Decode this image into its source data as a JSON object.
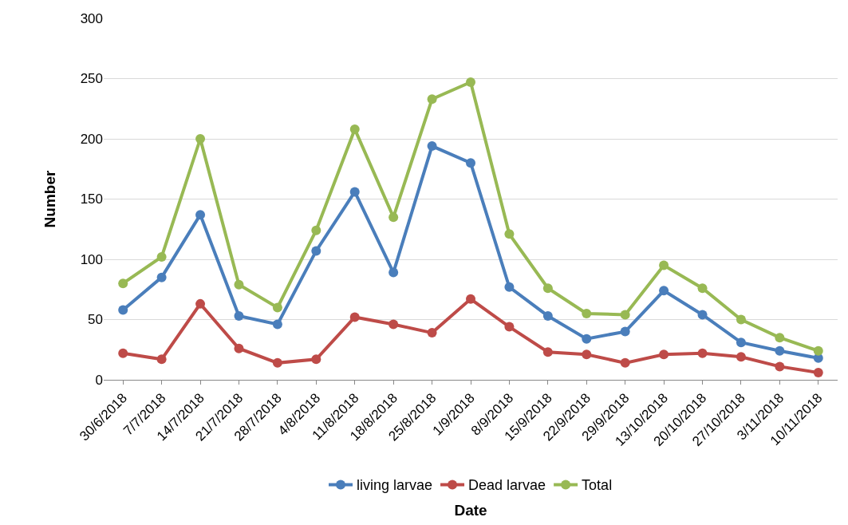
{
  "chart_data": {
    "type": "line",
    "xlabel": "Date",
    "ylabel": "Number",
    "categories": [
      "30/6/2018",
      "7/7/2018",
      "14/7/2018",
      "21/7/2018",
      "28/7/2018",
      "4/8/2018",
      "11/8/2018",
      "18/8/2018",
      "25/8/2018",
      "1/9/2018",
      "8/9/2018",
      "15/9/2018",
      "22/9/2018",
      "29/9/2018",
      "13/10/2018",
      "20/10/2018",
      "27/10/2018",
      "3/11/2018",
      "10/11/2018"
    ],
    "series": [
      {
        "name": "living larvae",
        "color": "#4a7ebb",
        "values": [
          58,
          85,
          137,
          53,
          46,
          107,
          156,
          89,
          194,
          180,
          77,
          53,
          34,
          40,
          74,
          54,
          31,
          24,
          18
        ]
      },
      {
        "name": "Dead larvae",
        "color": "#be4b48",
        "values": [
          22,
          17,
          63,
          26,
          14,
          17,
          52,
          46,
          39,
          67,
          44,
          23,
          21,
          14,
          21,
          22,
          19,
          11,
          6
        ]
      },
      {
        "name": "Total",
        "color": "#98b954",
        "values": [
          80,
          102,
          200,
          79,
          60,
          124,
          208,
          135,
          233,
          247,
          121,
          76,
          55,
          54,
          95,
          76,
          50,
          35,
          24
        ]
      }
    ],
    "ylim": [
      0,
      300
    ],
    "yticks": [
      0,
      50,
      100,
      150,
      200,
      250,
      300
    ],
    "grid": "y",
    "legend": "bottom",
    "marker": "circle",
    "line_style": "solid"
  }
}
